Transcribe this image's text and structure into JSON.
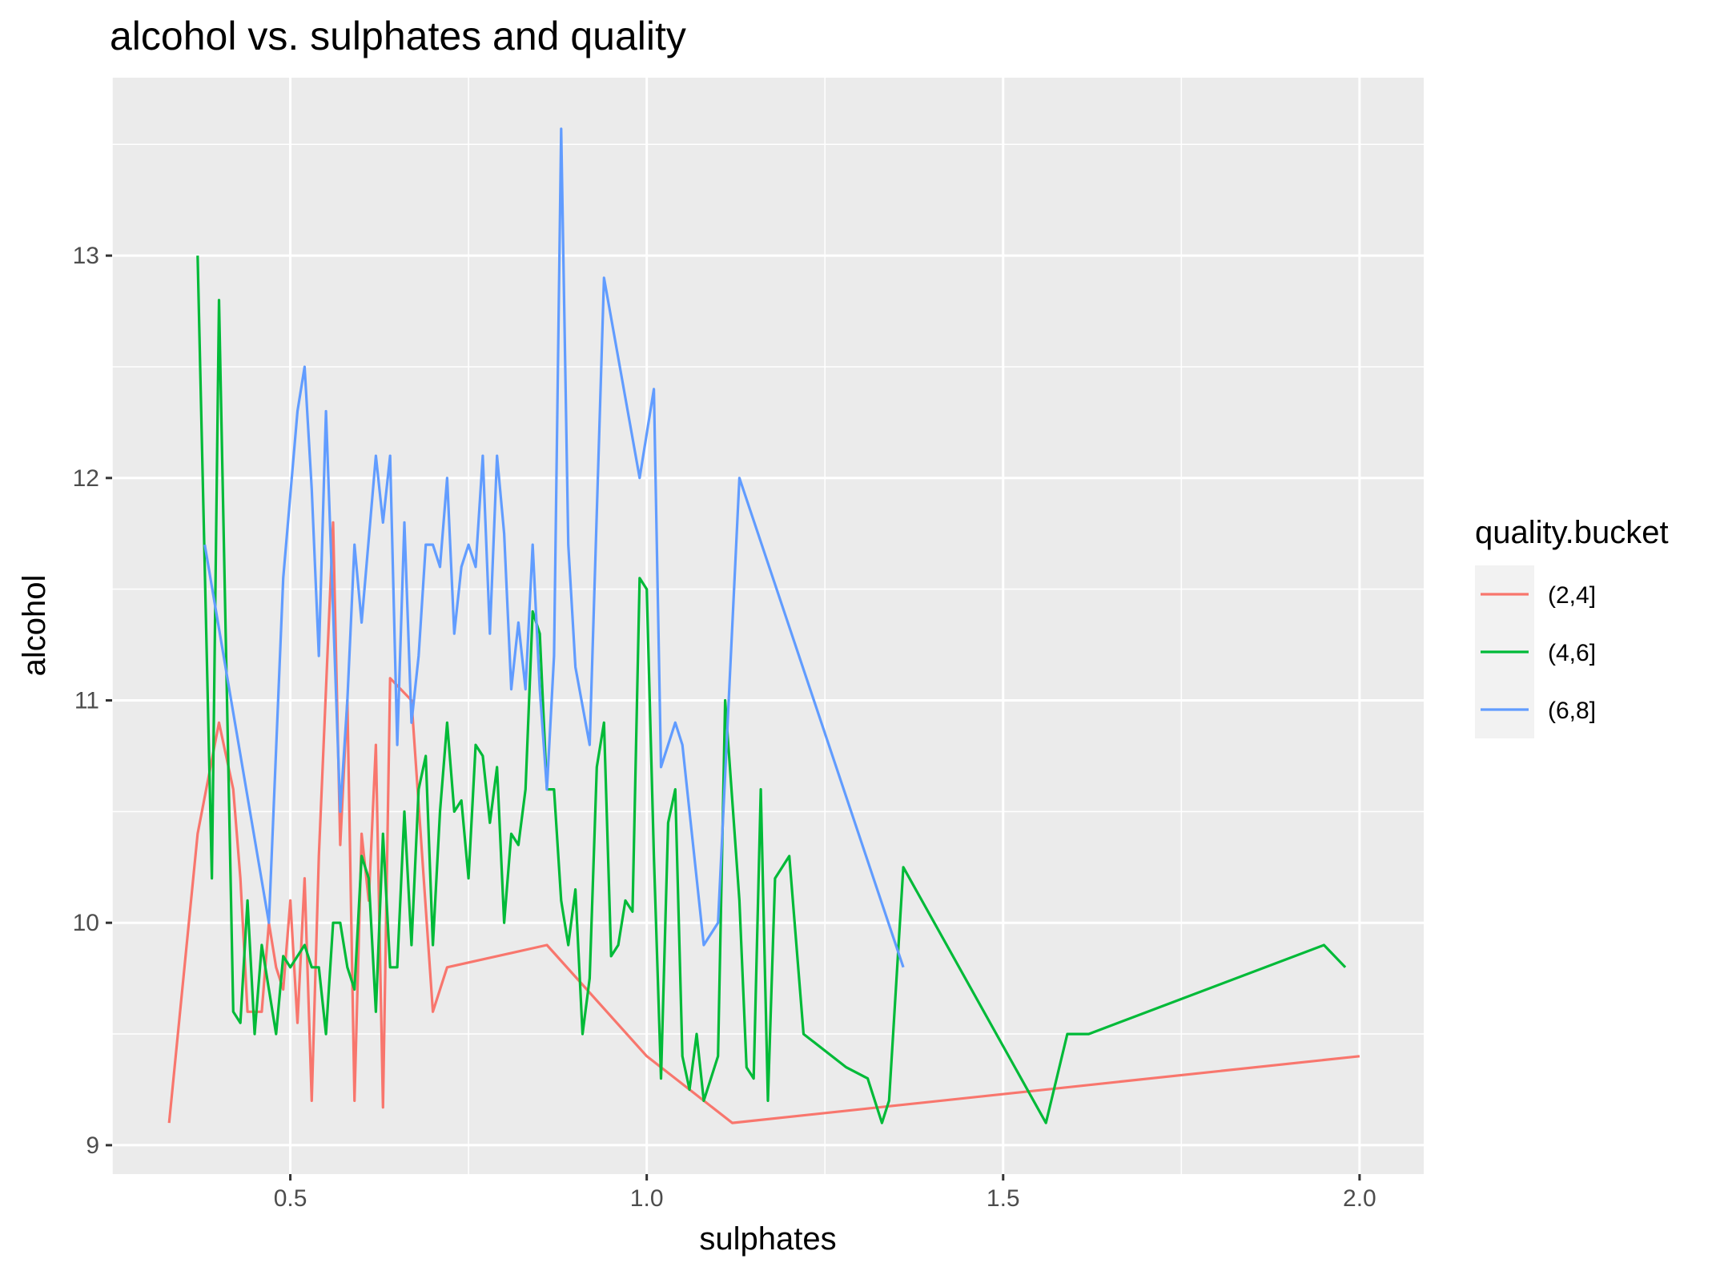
{
  "chart_data": {
    "type": "line",
    "title": "alcohol vs. sulphates and quality",
    "xlabel": "sulphates",
    "ylabel": "alcohol",
    "xlim": [
      0.25,
      2.09
    ],
    "ylim": [
      8.87,
      13.8
    ],
    "x_ticks": [
      {
        "value": 0.5,
        "label": "0.5"
      },
      {
        "value": 1.0,
        "label": "1.0"
      },
      {
        "value": 1.5,
        "label": "1.5"
      },
      {
        "value": 2.0,
        "label": "2.0"
      }
    ],
    "y_ticks": [
      {
        "value": 9,
        "label": "9"
      },
      {
        "value": 10,
        "label": "10"
      },
      {
        "value": 11,
        "label": "11"
      },
      {
        "value": 12,
        "label": "12"
      },
      {
        "value": 13,
        "label": "13"
      }
    ],
    "grid": true,
    "legend": {
      "title": "quality.bucket",
      "placement": "right"
    },
    "series": [
      {
        "name": "(2,4]",
        "color": "#F8766D",
        "points": [
          [
            0.33,
            9.1
          ],
          [
            0.37,
            10.4
          ],
          [
            0.4,
            10.9
          ],
          [
            0.42,
            10.6
          ],
          [
            0.43,
            10.2
          ],
          [
            0.44,
            9.6
          ],
          [
            0.45,
            9.6
          ],
          [
            0.46,
            9.6
          ],
          [
            0.47,
            10.0
          ],
          [
            0.48,
            9.8
          ],
          [
            0.49,
            9.7
          ],
          [
            0.5,
            10.1
          ],
          [
            0.51,
            9.55
          ],
          [
            0.52,
            10.2
          ],
          [
            0.53,
            9.2
          ],
          [
            0.54,
            10.3
          ],
          [
            0.56,
            11.8
          ],
          [
            0.57,
            10.35
          ],
          [
            0.58,
            11.0
          ],
          [
            0.59,
            9.2
          ],
          [
            0.6,
            10.4
          ],
          [
            0.61,
            10.1
          ],
          [
            0.62,
            10.8
          ],
          [
            0.63,
            9.17
          ],
          [
            0.64,
            11.1
          ],
          [
            0.67,
            11.0
          ],
          [
            0.7,
            9.6
          ],
          [
            0.72,
            9.8
          ],
          [
            0.86,
            9.9
          ],
          [
            1.0,
            9.4
          ],
          [
            1.12,
            9.1
          ],
          [
            2.0,
            9.4
          ]
        ]
      },
      {
        "name": "(4,6]",
        "color": "#00BA38",
        "points": [
          [
            0.37,
            13.0
          ],
          [
            0.39,
            10.2
          ],
          [
            0.4,
            12.8
          ],
          [
            0.42,
            9.6
          ],
          [
            0.43,
            9.55
          ],
          [
            0.44,
            10.1
          ],
          [
            0.45,
            9.5
          ],
          [
            0.46,
            9.9
          ],
          [
            0.48,
            9.5
          ],
          [
            0.49,
            9.85
          ],
          [
            0.5,
            9.8
          ],
          [
            0.52,
            9.9
          ],
          [
            0.53,
            9.8
          ],
          [
            0.54,
            9.8
          ],
          [
            0.55,
            9.5
          ],
          [
            0.56,
            10.0
          ],
          [
            0.57,
            10.0
          ],
          [
            0.58,
            9.8
          ],
          [
            0.59,
            9.7
          ],
          [
            0.6,
            10.3
          ],
          [
            0.61,
            10.2
          ],
          [
            0.62,
            9.6
          ],
          [
            0.63,
            10.4
          ],
          [
            0.64,
            9.8
          ],
          [
            0.65,
            9.8
          ],
          [
            0.66,
            10.5
          ],
          [
            0.67,
            9.9
          ],
          [
            0.68,
            10.6
          ],
          [
            0.69,
            10.75
          ],
          [
            0.7,
            9.9
          ],
          [
            0.71,
            10.5
          ],
          [
            0.72,
            10.9
          ],
          [
            0.73,
            10.5
          ],
          [
            0.74,
            10.55
          ],
          [
            0.75,
            10.2
          ],
          [
            0.76,
            10.8
          ],
          [
            0.77,
            10.75
          ],
          [
            0.78,
            10.45
          ],
          [
            0.79,
            10.7
          ],
          [
            0.8,
            10.0
          ],
          [
            0.81,
            10.4
          ],
          [
            0.82,
            10.35
          ],
          [
            0.83,
            10.6
          ],
          [
            0.84,
            11.4
          ],
          [
            0.85,
            11.3
          ],
          [
            0.86,
            10.6
          ],
          [
            0.87,
            10.6
          ],
          [
            0.88,
            10.1
          ],
          [
            0.89,
            9.9
          ],
          [
            0.9,
            10.15
          ],
          [
            0.91,
            9.5
          ],
          [
            0.92,
            9.75
          ],
          [
            0.93,
            10.7
          ],
          [
            0.94,
            10.9
          ],
          [
            0.95,
            9.85
          ],
          [
            0.96,
            9.9
          ],
          [
            0.97,
            10.1
          ],
          [
            0.98,
            10.05
          ],
          [
            0.99,
            11.55
          ],
          [
            1.0,
            11.5
          ],
          [
            1.01,
            10.3
          ],
          [
            1.02,
            9.3
          ],
          [
            1.03,
            10.45
          ],
          [
            1.04,
            10.6
          ],
          [
            1.05,
            9.4
          ],
          [
            1.06,
            9.25
          ],
          [
            1.07,
            9.5
          ],
          [
            1.08,
            9.2
          ],
          [
            1.1,
            9.4
          ],
          [
            1.11,
            11.0
          ],
          [
            1.13,
            10.1
          ],
          [
            1.14,
            9.35
          ],
          [
            1.15,
            9.3
          ],
          [
            1.16,
            10.6
          ],
          [
            1.17,
            9.2
          ],
          [
            1.18,
            10.2
          ],
          [
            1.2,
            10.3
          ],
          [
            1.22,
            9.5
          ],
          [
            1.28,
            9.35
          ],
          [
            1.31,
            9.3
          ],
          [
            1.33,
            9.1
          ],
          [
            1.34,
            9.2
          ],
          [
            1.36,
            10.25
          ],
          [
            1.56,
            9.1
          ],
          [
            1.59,
            9.5
          ],
          [
            1.62,
            9.5
          ],
          [
            1.95,
            9.9
          ],
          [
            1.98,
            9.8
          ]
        ]
      },
      {
        "name": "(6,8]",
        "color": "#619CFF",
        "points": [
          [
            0.38,
            11.7
          ],
          [
            0.47,
            10.0
          ],
          [
            0.49,
            11.55
          ],
          [
            0.51,
            12.3
          ],
          [
            0.52,
            12.5
          ],
          [
            0.53,
            11.95
          ],
          [
            0.54,
            11.2
          ],
          [
            0.55,
            12.3
          ],
          [
            0.57,
            10.5
          ],
          [
            0.58,
            11.0
          ],
          [
            0.59,
            11.7
          ],
          [
            0.6,
            11.35
          ],
          [
            0.62,
            12.1
          ],
          [
            0.63,
            11.8
          ],
          [
            0.64,
            12.1
          ],
          [
            0.65,
            10.8
          ],
          [
            0.66,
            11.8
          ],
          [
            0.67,
            10.9
          ],
          [
            0.68,
            11.2
          ],
          [
            0.69,
            11.7
          ],
          [
            0.7,
            11.7
          ],
          [
            0.71,
            11.6
          ],
          [
            0.72,
            12.0
          ],
          [
            0.73,
            11.3
          ],
          [
            0.74,
            11.6
          ],
          [
            0.75,
            11.7
          ],
          [
            0.76,
            11.6
          ],
          [
            0.77,
            12.1
          ],
          [
            0.78,
            11.3
          ],
          [
            0.79,
            12.1
          ],
          [
            0.8,
            11.75
          ],
          [
            0.81,
            11.05
          ],
          [
            0.82,
            11.35
          ],
          [
            0.83,
            11.05
          ],
          [
            0.84,
            11.7
          ],
          [
            0.85,
            11.05
          ],
          [
            0.86,
            10.6
          ],
          [
            0.87,
            11.2
          ],
          [
            0.88,
            13.57
          ],
          [
            0.89,
            11.7
          ],
          [
            0.9,
            11.15
          ],
          [
            0.92,
            10.8
          ],
          [
            0.94,
            12.9
          ],
          [
            0.99,
            12.0
          ],
          [
            1.01,
            12.4
          ],
          [
            1.02,
            10.7
          ],
          [
            1.04,
            10.9
          ],
          [
            1.05,
            10.8
          ],
          [
            1.08,
            9.9
          ],
          [
            1.1,
            10.0
          ],
          [
            1.13,
            12.0
          ],
          [
            1.36,
            9.8
          ]
        ]
      }
    ]
  }
}
